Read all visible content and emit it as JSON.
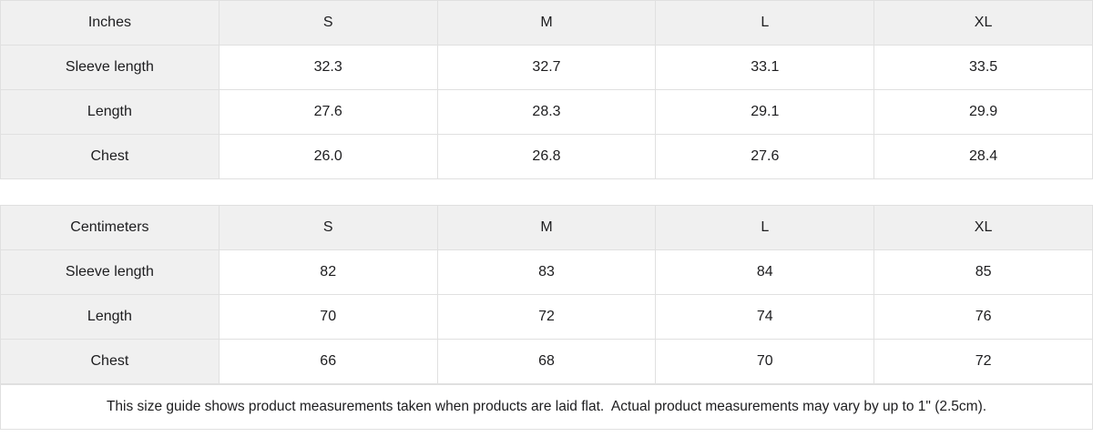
{
  "colors": {
    "header_bg": "#f0f0f0",
    "border_color": "#e0e0e0",
    "text_color": "#1d1d1f",
    "cell_bg": "#ffffff"
  },
  "chart_data": [
    {
      "type": "table",
      "unit": "Inches",
      "columns": [
        "S",
        "M",
        "L",
        "XL"
      ],
      "rows": [
        {
          "label": "Sleeve length",
          "values": [
            "32.3",
            "32.7",
            "33.1",
            "33.5"
          ]
        },
        {
          "label": "Length",
          "values": [
            "27.6",
            "28.3",
            "29.1",
            "29.9"
          ]
        },
        {
          "label": "Chest",
          "values": [
            "26.0",
            "26.8",
            "27.6",
            "28.4"
          ]
        }
      ]
    },
    {
      "type": "table",
      "unit": "Centimeters",
      "columns": [
        "S",
        "M",
        "L",
        "XL"
      ],
      "rows": [
        {
          "label": "Sleeve length",
          "values": [
            "82",
            "83",
            "84",
            "85"
          ]
        },
        {
          "label": "Length",
          "values": [
            "70",
            "72",
            "74",
            "76"
          ]
        },
        {
          "label": "Chest",
          "values": [
            "66",
            "68",
            "70",
            "72"
          ]
        }
      ]
    }
  ],
  "footer": {
    "note": "This size guide shows product measurements taken when products are laid flat.  Actual product measurements may vary by up to 1\" (2.5cm)."
  }
}
